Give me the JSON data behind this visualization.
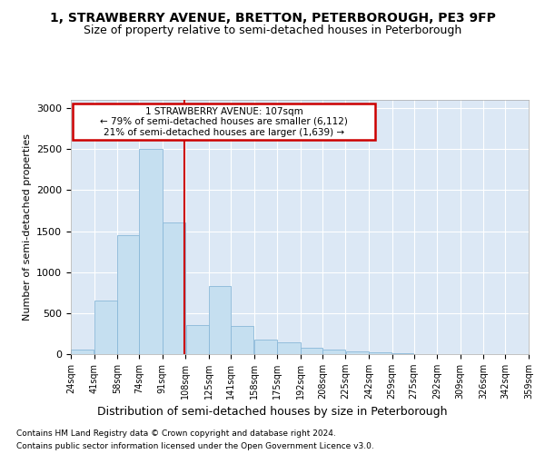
{
  "title1": "1, STRAWBERRY AVENUE, BRETTON, PETERBOROUGH, PE3 9FP",
  "title2": "Size of property relative to semi-detached houses in Peterborough",
  "xlabel": "Distribution of semi-detached houses by size in Peterborough",
  "ylabel": "Number of semi-detached properties",
  "footnote1": "Contains HM Land Registry data © Crown copyright and database right 2024.",
  "footnote2": "Contains public sector information licensed under the Open Government Licence v3.0.",
  "annotation_title": "1 STRAWBERRY AVENUE: 107sqm",
  "annotation_line1": "← 79% of semi-detached houses are smaller (6,112)",
  "annotation_line2": "21% of semi-detached houses are larger (1,639) →",
  "bar_left_edges": [
    24,
    41,
    58,
    74,
    91,
    108,
    125,
    141,
    158,
    175,
    192,
    208,
    225,
    242,
    259,
    275,
    292,
    309,
    326,
    342
  ],
  "bar_widths": [
    17,
    17,
    16,
    17,
    17,
    17,
    16,
    17,
    17,
    17,
    16,
    17,
    17,
    17,
    16,
    17,
    17,
    17,
    16,
    17
  ],
  "bar_heights": [
    55,
    650,
    1450,
    2500,
    1600,
    350,
    825,
    340,
    175,
    145,
    80,
    55,
    30,
    20,
    10,
    5,
    5,
    5,
    5,
    5
  ],
  "bar_color": "#c5dff0",
  "bar_edge_color": "#8ab8d8",
  "vline_color": "#cc0000",
  "vline_x": 107,
  "ylim": [
    0,
    3100
  ],
  "yticks": [
    0,
    500,
    1000,
    1500,
    2000,
    2500,
    3000
  ],
  "tick_labels": [
    "24sqm",
    "41sqm",
    "58sqm",
    "74sqm",
    "91sqm",
    "108sqm",
    "125sqm",
    "141sqm",
    "158sqm",
    "175sqm",
    "192sqm",
    "208sqm",
    "225sqm",
    "242sqm",
    "259sqm",
    "275sqm",
    "292sqm",
    "309sqm",
    "326sqm",
    "342sqm",
    "359sqm"
  ],
  "plot_bg_color": "#dce8f5",
  "title1_fontsize": 10,
  "title2_fontsize": 9,
  "annotation_box_color": "#ffffff",
  "annotation_box_edge": "#cc0000",
  "grid_color": "#ffffff",
  "footnote_fontsize": 6.5,
  "xlabel_fontsize": 9,
  "ylabel_fontsize": 8
}
